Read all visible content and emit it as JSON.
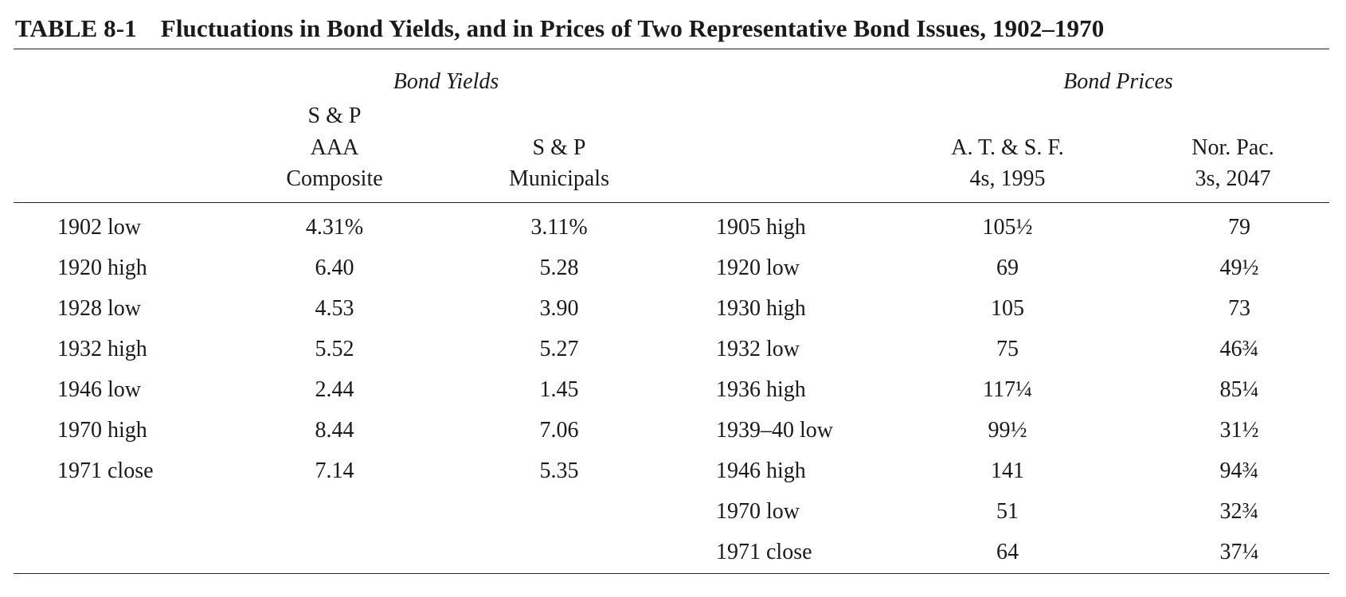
{
  "table": {
    "number": "TABLE 8-1",
    "caption": "Fluctuations in Bond Yields, and in Prices of Two Representative Bond Issues, 1902–1970",
    "groups": {
      "yields": "Bond Yields",
      "prices": "Bond Prices"
    },
    "headers": {
      "aaa": [
        "S & P",
        "AAA",
        "Composite"
      ],
      "muni": [
        "S & P",
        "Municipals"
      ],
      "atsf": [
        "A. T. & S. F.",
        "4s, 1995"
      ],
      "norpac": [
        "Nor. Pac.",
        "3s, 2047"
      ]
    },
    "yield_rows": [
      {
        "period": "1902 low",
        "aaa": "4.31%",
        "muni": "3.11%"
      },
      {
        "period": "1920 high",
        "aaa": "6.40",
        "muni": "5.28"
      },
      {
        "period": "1928 low",
        "aaa": "4.53",
        "muni": "3.90"
      },
      {
        "period": "1932 high",
        "aaa": "5.52",
        "muni": "5.27"
      },
      {
        "period": "1946 low",
        "aaa": "2.44",
        "muni": "1.45"
      },
      {
        "period": "1970 high",
        "aaa": "8.44",
        "muni": "7.06"
      },
      {
        "period": "1971 close",
        "aaa": "7.14",
        "muni": "5.35"
      }
    ],
    "price_rows": [
      {
        "period": "1905 high",
        "atsf": "105½",
        "norpac": "79"
      },
      {
        "period": "1920 low",
        "atsf": "69",
        "norpac": "49½"
      },
      {
        "period": "1930 high",
        "atsf": "105",
        "norpac": "73"
      },
      {
        "period": "1932 low",
        "atsf": "75",
        "norpac": "46¾"
      },
      {
        "period": "1936 high",
        "atsf": "117¼",
        "norpac": "85¼"
      },
      {
        "period": "1939–40 low",
        "atsf": "99½",
        "norpac": "31½"
      },
      {
        "period": "1946 high",
        "atsf": "141",
        "norpac": "94¾"
      },
      {
        "period": "1970 low",
        "atsf": "51",
        "norpac": "32¾"
      },
      {
        "period": "1971 close",
        "atsf": "64",
        "norpac": "37¼"
      }
    ]
  }
}
